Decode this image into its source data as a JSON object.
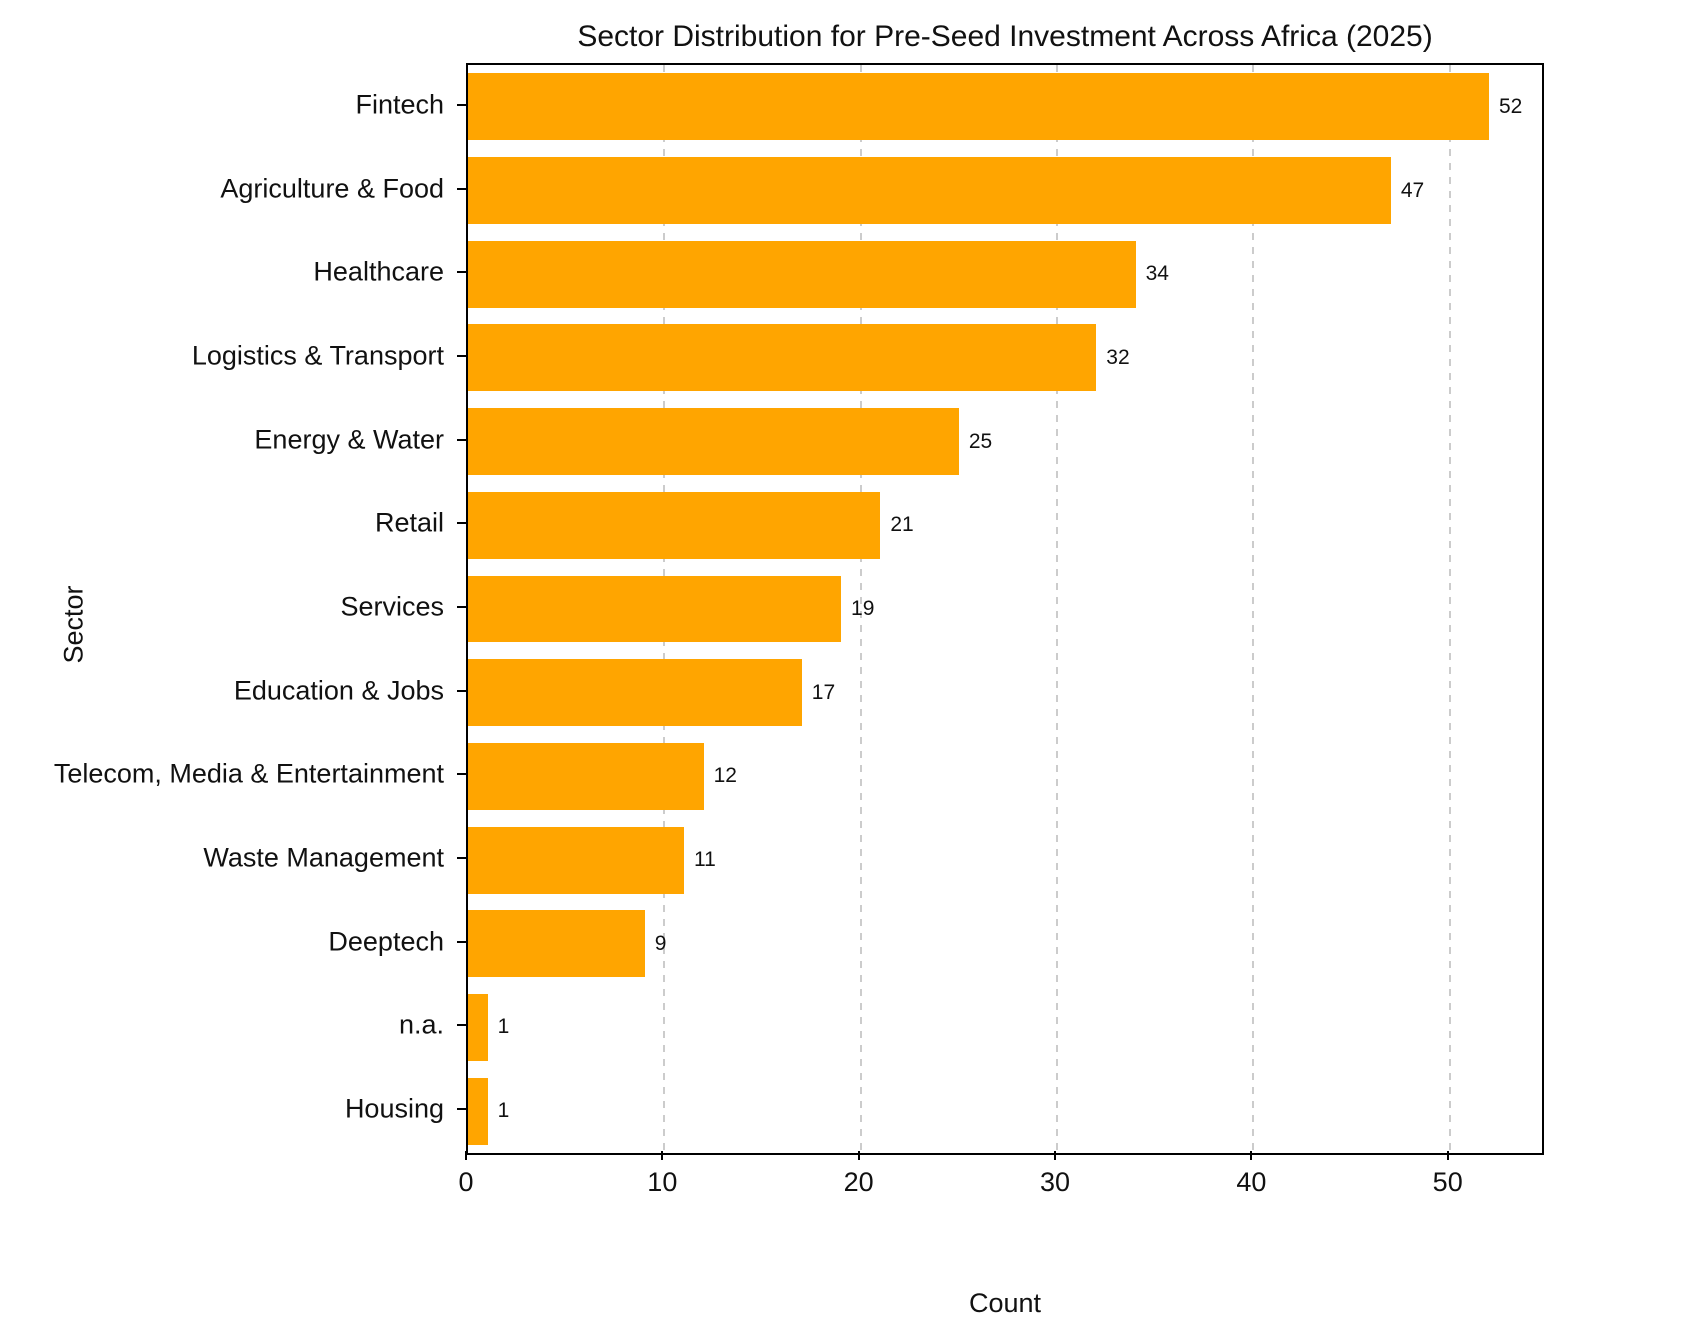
{
  "chart_data": {
    "type": "bar",
    "orientation": "horizontal",
    "title": "Sector Distribution for Pre-Seed Investment Across Africa (2025)",
    "xlabel": "Count",
    "ylabel": "Sector",
    "categories": [
      "Fintech",
      "Agriculture & Food",
      "Healthcare",
      "Logistics & Transport",
      "Energy & Water",
      "Retail",
      "Services",
      "Education & Jobs",
      "Telecom, Media & Entertainment",
      "Waste Management",
      "Deeptech",
      "n.a.",
      "Housing"
    ],
    "values": [
      52,
      47,
      34,
      32,
      25,
      21,
      19,
      17,
      12,
      11,
      9,
      1,
      1
    ],
    "xlim": [
      0,
      54.7
    ],
    "xticks": [
      0,
      10,
      20,
      30,
      40,
      50
    ],
    "grid": "vertical-dashed",
    "legend": "none",
    "bar_color": "#FFA500",
    "grid_color": "#cccccc",
    "value_labels": true
  }
}
